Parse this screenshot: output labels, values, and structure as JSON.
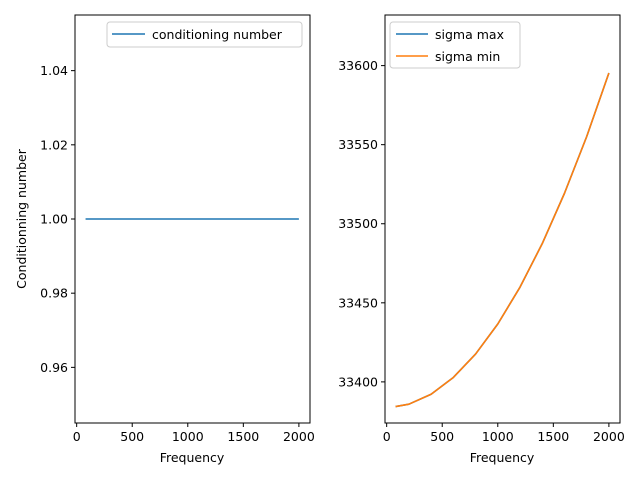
{
  "chart_data": [
    {
      "type": "line",
      "title": "",
      "xlabel": "Frequency",
      "ylabel": "Conditionning number",
      "xlim": [
        -15,
        2100
      ],
      "ylim": [
        0.945,
        1.055
      ],
      "xticks": [
        "0",
        "500",
        "1000",
        "1500",
        "2000"
      ],
      "xtick_values": [
        0,
        500,
        1000,
        1500,
        2000
      ],
      "yticks": [
        "0.96",
        "0.98",
        "1.00",
        "1.02",
        "1.04"
      ],
      "ytick_values": [
        0.96,
        0.98,
        1.0,
        1.02,
        1.04
      ],
      "legend_position": "top-right",
      "series": [
        {
          "name": "conditioning number",
          "color": "#1f77b4",
          "x": [
            80,
            2000
          ],
          "y": [
            1.0,
            1.0
          ]
        }
      ]
    },
    {
      "type": "line",
      "title": "",
      "xlabel": "Frequency",
      "ylabel": "",
      "xlim": [
        -15,
        2100
      ],
      "ylim": [
        33374,
        33632
      ],
      "xticks": [
        "0",
        "500",
        "1000",
        "1500",
        "2000"
      ],
      "xtick_values": [
        0,
        500,
        1000,
        1500,
        2000
      ],
      "yticks": [
        "33400",
        "33450",
        "33500",
        "33550",
        "33600"
      ],
      "ytick_values": [
        33400,
        33450,
        33500,
        33550,
        33600
      ],
      "legend_position": "top-left",
      "series": [
        {
          "name": "sigma max",
          "color": "#1f77b4",
          "x": [
            80,
            200,
            400,
            600,
            800,
            1000,
            1200,
            1400,
            1600,
            1800,
            2000
          ],
          "y": [
            33384.4,
            33385.9,
            33392.2,
            33402.8,
            33417.6,
            33436.6,
            33459.9,
            33487.4,
            33519.2,
            33555.1,
            33595.3
          ]
        },
        {
          "name": "sigma min",
          "color": "#ff7f0e",
          "x": [
            80,
            200,
            400,
            600,
            800,
            1000,
            1200,
            1400,
            1600,
            1800,
            2000
          ],
          "y": [
            33384.4,
            33385.9,
            33392.2,
            33402.8,
            33417.6,
            33436.6,
            33459.9,
            33487.4,
            33519.2,
            33555.1,
            33595.3
          ]
        }
      ]
    }
  ]
}
